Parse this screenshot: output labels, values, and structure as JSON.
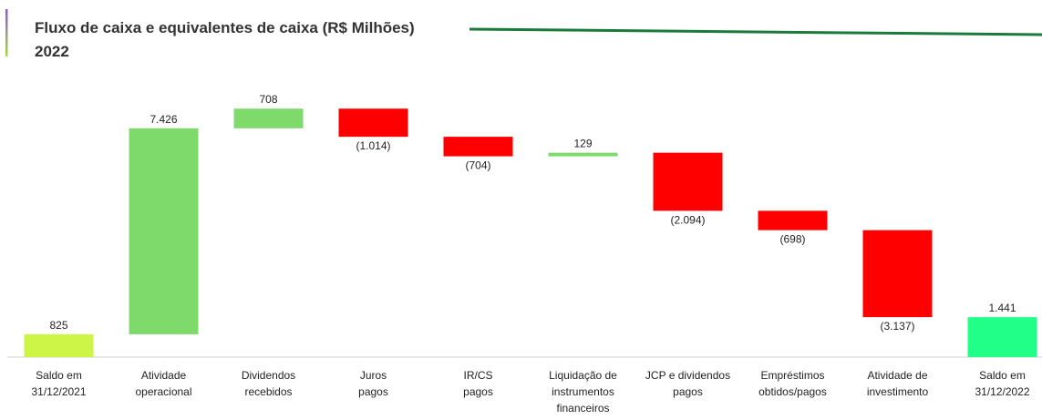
{
  "chart_data": {
    "type": "waterfall",
    "title": "Fluxo de caixa e equivalentes de caixa (R$ Milhões)",
    "subtitle": "2022",
    "categories": [
      [
        "Saldo em",
        "31/12/2021"
      ],
      [
        "Atividade",
        "operacional"
      ],
      [
        "Dividendos",
        "recebidos"
      ],
      [
        "Juros",
        "pagos"
      ],
      [
        "IR/CS",
        "pagos"
      ],
      [
        "Liquidação de",
        "instrumentos",
        "financeiros"
      ],
      [
        "JCP e dividendos",
        "pagos"
      ],
      [
        "Empréstimos",
        "obtidos/pagos"
      ],
      [
        "Atividade de",
        "investimento"
      ],
      [
        "Saldo em",
        "31/12/2022"
      ]
    ],
    "values": [
      825,
      7426,
      708,
      -1014,
      -704,
      129,
      -2094,
      -698,
      -3137,
      1441
    ],
    "value_labels": [
      "825",
      "7.426",
      "708",
      "(1.014)",
      "(704)",
      "129",
      "(2.094)",
      "(698)",
      "(3.137)",
      "1.441"
    ],
    "totals": [
      0,
      9
    ],
    "colors": {
      "start": "#ccf545",
      "increase": "#7fda6c",
      "decrease": "#ff0000",
      "end": "#22ff88"
    },
    "ylim": [
      0,
      9000
    ]
  }
}
